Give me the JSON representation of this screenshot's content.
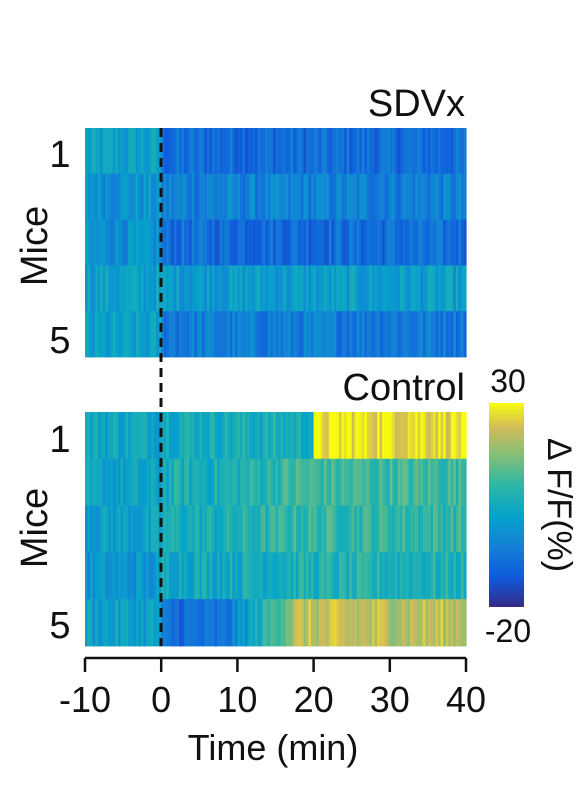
{
  "chart_data": [
    {
      "type": "heatmap",
      "panel": "top",
      "title": "SDVx",
      "ylabel": "Mice",
      "ytick_labels": [
        "1",
        "5"
      ],
      "rows": 5,
      "x_range": [
        -10,
        40
      ],
      "stimulus_time": 0,
      "value_range": [
        -20,
        30
      ],
      "row_profiles": [
        {
          "row": 1,
          "pre": 2,
          "post": -9
        },
        {
          "row": 2,
          "pre": -1,
          "post": -5
        },
        {
          "row": 3,
          "pre": -2,
          "post": -9
        },
        {
          "row": 4,
          "pre": 2,
          "post": 1
        },
        {
          "row": 5,
          "pre": 1,
          "post": -6
        }
      ]
    },
    {
      "type": "heatmap",
      "panel": "bottom",
      "title": "Control",
      "ylabel": "Mice",
      "ytick_labels": [
        "1",
        "5"
      ],
      "rows": 5,
      "x_range": [
        -10,
        40
      ],
      "stimulus_time": 0,
      "value_range": [
        -20,
        30
      ],
      "row_profiles": [
        {
          "row": 1,
          "pre": 4,
          "early": 6,
          "late": 28
        },
        {
          "row": 2,
          "pre": 2,
          "early": 6,
          "late": 11
        },
        {
          "row": 3,
          "pre": 2,
          "early": 6,
          "late": 10
        },
        {
          "row": 4,
          "pre": -1,
          "early": 5,
          "late": 7
        },
        {
          "row": 5,
          "pre": 2,
          "early": -9,
          "late": 22
        }
      ]
    }
  ],
  "xaxis": {
    "label": "Time (min)",
    "ticks": [
      "-10",
      "0",
      "10",
      "20",
      "30",
      "40"
    ],
    "tick_values": [
      -10,
      0,
      10,
      20,
      30,
      40
    ],
    "range": [
      -10,
      40
    ]
  },
  "colorbar": {
    "label": "Δ F/F(%)",
    "max_label": "30",
    "min_label": "-20",
    "range": [
      -20,
      30
    ],
    "colormap": "parula"
  }
}
